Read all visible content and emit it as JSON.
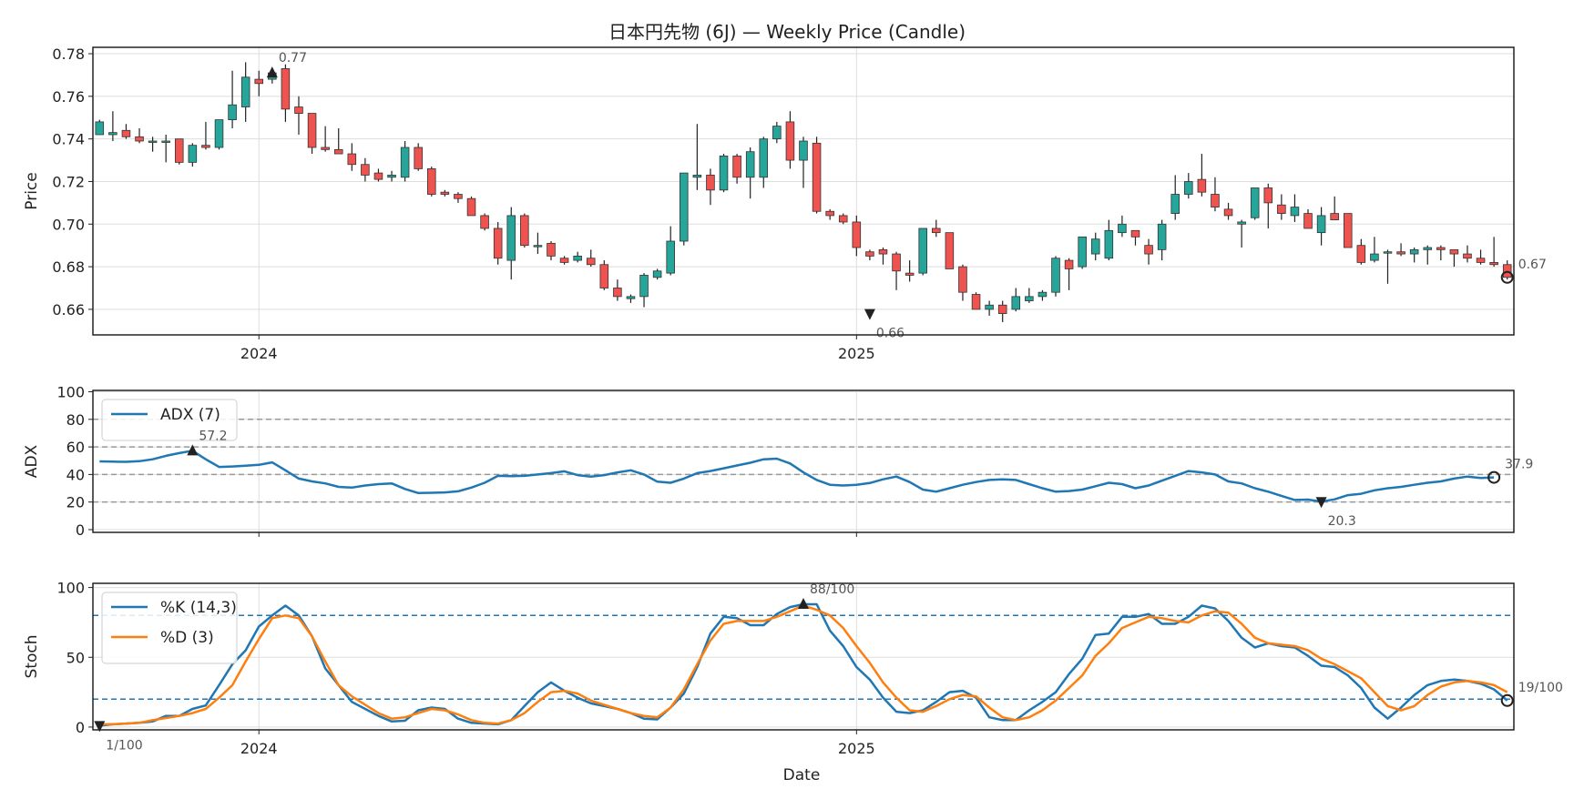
{
  "title": "日本円先物 (6J) — Weekly Price (Candle)",
  "xlabel": "Date",
  "colors": {
    "up": "#26a69a",
    "down": "#ef5350",
    "adx": "#1f77b4",
    "k": "#1f77b4",
    "d": "#ff7f0e",
    "grid": "#dddddd",
    "ref": "#999999"
  },
  "chart_data": [
    {
      "type": "candlestick",
      "ylabel": "Price",
      "ylim": [
        0.648,
        0.783
      ],
      "yticks": [
        0.66,
        0.68,
        0.7,
        0.72,
        0.74,
        0.76,
        0.78
      ],
      "xtick_labels": [
        {
          "label": "2024",
          "index": 12
        },
        {
          "label": "2025",
          "index": 57
        }
      ],
      "grid": true,
      "ohlc": [
        [
          0.742,
          0.749,
          0.742,
          0.748
        ],
        [
          0.742,
          0.753,
          0.739,
          0.743
        ],
        [
          0.744,
          0.747,
          0.74,
          0.741
        ],
        [
          0.741,
          0.745,
          0.738,
          0.739
        ],
        [
          0.739,
          0.741,
          0.734,
          0.739
        ],
        [
          0.739,
          0.742,
          0.729,
          0.739
        ],
        [
          0.74,
          0.74,
          0.728,
          0.729
        ],
        [
          0.729,
          0.738,
          0.727,
          0.737
        ],
        [
          0.737,
          0.748,
          0.735,
          0.736
        ],
        [
          0.736,
          0.749,
          0.735,
          0.749
        ],
        [
          0.749,
          0.772,
          0.745,
          0.756
        ],
        [
          0.755,
          0.776,
          0.748,
          0.769
        ],
        [
          0.768,
          0.772,
          0.76,
          0.766
        ],
        [
          0.768,
          0.772,
          0.766,
          0.771
        ],
        [
          0.773,
          0.775,
          0.748,
          0.754
        ],
        [
          0.755,
          0.76,
          0.742,
          0.752
        ],
        [
          0.752,
          0.752,
          0.733,
          0.736
        ],
        [
          0.736,
          0.746,
          0.734,
          0.735
        ],
        [
          0.735,
          0.745,
          0.733,
          0.733
        ],
        [
          0.733,
          0.738,
          0.725,
          0.728
        ],
        [
          0.728,
          0.731,
          0.72,
          0.723
        ],
        [
          0.724,
          0.726,
          0.72,
          0.721
        ],
        [
          0.722,
          0.725,
          0.72,
          0.723
        ],
        [
          0.722,
          0.739,
          0.72,
          0.736
        ],
        [
          0.736,
          0.738,
          0.725,
          0.726
        ],
        [
          0.726,
          0.727,
          0.713,
          0.714
        ],
        [
          0.715,
          0.716,
          0.713,
          0.714
        ],
        [
          0.714,
          0.715,
          0.71,
          0.712
        ],
        [
          0.712,
          0.713,
          0.704,
          0.704
        ],
        [
          0.704,
          0.705,
          0.697,
          0.698
        ],
        [
          0.698,
          0.701,
          0.681,
          0.684
        ],
        [
          0.683,
          0.708,
          0.674,
          0.704
        ],
        [
          0.704,
          0.705,
          0.689,
          0.69
        ],
        [
          0.69,
          0.696,
          0.686,
          0.69
        ],
        [
          0.691,
          0.692,
          0.683,
          0.685
        ],
        [
          0.684,
          0.685,
          0.681,
          0.682
        ],
        [
          0.683,
          0.687,
          0.682,
          0.685
        ],
        [
          0.684,
          0.688,
          0.68,
          0.681
        ],
        [
          0.681,
          0.683,
          0.669,
          0.67
        ],
        [
          0.67,
          0.674,
          0.664,
          0.666
        ],
        [
          0.665,
          0.667,
          0.663,
          0.666
        ],
        [
          0.666,
          0.677,
          0.661,
          0.676
        ],
        [
          0.675,
          0.679,
          0.674,
          0.678
        ],
        [
          0.677,
          0.699,
          0.676,
          0.692
        ],
        [
          0.692,
          0.724,
          0.69,
          0.724
        ],
        [
          0.722,
          0.747,
          0.716,
          0.723
        ],
        [
          0.723,
          0.726,
          0.709,
          0.716
        ],
        [
          0.716,
          0.733,
          0.715,
          0.732
        ],
        [
          0.732,
          0.733,
          0.719,
          0.722
        ],
        [
          0.722,
          0.736,
          0.712,
          0.734
        ],
        [
          0.722,
          0.741,
          0.717,
          0.74
        ],
        [
          0.74,
          0.748,
          0.738,
          0.746
        ],
        [
          0.748,
          0.753,
          0.726,
          0.73
        ],
        [
          0.73,
          0.741,
          0.717,
          0.739
        ],
        [
          0.738,
          0.741,
          0.705,
          0.706
        ],
        [
          0.706,
          0.707,
          0.702,
          0.704
        ],
        [
          0.704,
          0.705,
          0.7,
          0.701
        ],
        [
          0.701,
          0.704,
          0.685,
          0.689
        ],
        [
          0.687,
          0.688,
          0.683,
          0.685
        ],
        [
          0.688,
          0.689,
          0.681,
          0.686
        ],
        [
          0.686,
          0.687,
          0.669,
          0.678
        ],
        [
          0.677,
          0.683,
          0.673,
          0.676
        ],
        [
          0.677,
          0.698,
          0.676,
          0.698
        ],
        [
          0.698,
          0.702,
          0.694,
          0.696
        ],
        [
          0.696,
          0.696,
          0.679,
          0.679
        ],
        [
          0.68,
          0.681,
          0.664,
          0.668
        ],
        [
          0.667,
          0.668,
          0.66,
          0.66
        ],
        [
          0.66,
          0.664,
          0.657,
          0.662
        ],
        [
          0.662,
          0.664,
          0.654,
          0.658
        ],
        [
          0.66,
          0.67,
          0.659,
          0.666
        ],
        [
          0.664,
          0.67,
          0.663,
          0.666
        ],
        [
          0.666,
          0.669,
          0.664,
          0.668
        ],
        [
          0.668,
          0.685,
          0.666,
          0.684
        ],
        [
          0.683,
          0.684,
          0.669,
          0.679
        ],
        [
          0.68,
          0.694,
          0.679,
          0.694
        ],
        [
          0.686,
          0.696,
          0.683,
          0.693
        ],
        [
          0.684,
          0.702,
          0.683,
          0.697
        ],
        [
          0.696,
          0.704,
          0.694,
          0.7
        ],
        [
          0.697,
          0.697,
          0.69,
          0.694
        ],
        [
          0.69,
          0.693,
          0.681,
          0.686
        ],
        [
          0.688,
          0.702,
          0.683,
          0.7
        ],
        [
          0.705,
          0.723,
          0.702,
          0.714
        ],
        [
          0.714,
          0.724,
          0.712,
          0.72
        ],
        [
          0.721,
          0.733,
          0.713,
          0.715
        ],
        [
          0.714,
          0.722,
          0.706,
          0.708
        ],
        [
          0.707,
          0.71,
          0.702,
          0.704
        ],
        [
          0.7,
          0.702,
          0.689,
          0.701
        ],
        [
          0.703,
          0.717,
          0.702,
          0.717
        ],
        [
          0.717,
          0.719,
          0.698,
          0.71
        ],
        [
          0.709,
          0.714,
          0.702,
          0.705
        ],
        [
          0.704,
          0.714,
          0.701,
          0.708
        ],
        [
          0.705,
          0.707,
          0.699,
          0.698
        ],
        [
          0.696,
          0.708,
          0.69,
          0.704
        ],
        [
          0.705,
          0.713,
          0.702,
          0.702
        ],
        [
          0.705,
          0.705,
          0.689,
          0.689
        ],
        [
          0.69,
          0.693,
          0.681,
          0.682
        ],
        [
          0.683,
          0.694,
          0.682,
          0.686
        ],
        [
          0.687,
          0.688,
          0.672,
          0.687
        ],
        [
          0.687,
          0.691,
          0.685,
          0.686
        ],
        [
          0.686,
          0.689,
          0.682,
          0.688
        ],
        [
          0.688,
          0.69,
          0.681,
          0.689
        ],
        [
          0.689,
          0.69,
          0.683,
          0.688
        ],
        [
          0.688,
          0.688,
          0.68,
          0.686
        ],
        [
          0.686,
          0.69,
          0.682,
          0.684
        ],
        [
          0.684,
          0.688,
          0.681,
          0.682
        ],
        [
          0.682,
          0.694,
          0.68,
          0.681
        ],
        [
          0.681,
          0.683,
          0.674,
          0.675
        ]
      ],
      "annotations": [
        {
          "text": "0.77",
          "index": 13,
          "value": 0.771,
          "marker": "up"
        },
        {
          "text": "0.66",
          "index": 58,
          "value": 0.658,
          "marker": "down"
        },
        {
          "text": "0.67",
          "index": 106,
          "value": 0.675,
          "marker": "circle"
        }
      ]
    },
    {
      "type": "line",
      "ylabel": "ADX",
      "ylim": [
        -2,
        101
      ],
      "yticks": [
        0,
        20,
        40,
        60,
        80,
        100
      ],
      "ref_lines": [
        20,
        40,
        60,
        80
      ],
      "legend_placement": "top-left",
      "series": [
        {
          "name": "ADX (7)",
          "values": [
            49.5,
            49.3,
            49.2,
            49.6,
            51.0,
            53.5,
            55.5,
            57.2,
            51.0,
            45.5,
            45.8,
            46.3,
            47.0,
            48.8,
            43.0,
            37.0,
            35.0,
            33.5,
            31.0,
            30.5,
            32.0,
            33.0,
            33.5,
            29.5,
            26.5,
            26.7,
            27.0,
            27.8,
            30.5,
            34.0,
            39.0,
            38.8,
            39.0,
            40.0,
            41.0,
            42.3,
            39.5,
            38.5,
            39.5,
            41.5,
            43.0,
            40.0,
            34.8,
            34.0,
            37.0,
            41.0,
            42.5,
            44.5,
            46.5,
            48.5,
            51.0,
            51.5,
            48.0,
            41.5,
            36.0,
            32.5,
            32.0,
            32.5,
            33.8,
            36.5,
            38.5,
            34.5,
            29.0,
            27.5,
            30.0,
            32.5,
            34.5,
            36.0,
            36.5,
            36.0,
            33.0,
            30.0,
            27.5,
            28.0,
            29.0,
            31.5,
            34.0,
            33.0,
            30.0,
            32.0,
            35.5,
            39.0,
            42.5,
            41.5,
            40.0,
            35.0,
            33.5,
            30.0,
            27.5,
            24.5,
            21.5,
            21.8,
            20.3,
            22.0,
            25.0,
            26.0,
            28.5,
            30.0,
            31.0,
            32.5,
            34.0,
            35.0,
            37.0,
            38.5,
            37.5,
            37.9
          ]
        }
      ],
      "annotations": [
        {
          "text": "57.2",
          "index": 7,
          "value": 57.2,
          "marker": "up"
        },
        {
          "text": "20.3",
          "index": 92,
          "value": 20.3,
          "marker": "down"
        },
        {
          "text": "37.9",
          "index": 105,
          "value": 37.9,
          "marker": "circle"
        }
      ]
    },
    {
      "type": "line",
      "ylabel": "Stoch",
      "ylim": [
        -2,
        103
      ],
      "yticks": [
        0,
        50,
        100
      ],
      "ref_lines": [
        20,
        80
      ],
      "legend_placement": "top-left",
      "series": [
        {
          "name": "%K (14,3)",
          "values": [
            1.0,
            2.0,
            2.5,
            3.0,
            4.0,
            8.0,
            8.0,
            13.0,
            15.5,
            30.0,
            45.0,
            55.0,
            72.0,
            80.0,
            87.0,
            80.0,
            65.0,
            42.0,
            30.0,
            18.0,
            13.0,
            8.0,
            4.0,
            4.5,
            12.0,
            14.0,
            13.0,
            6.0,
            3.0,
            2.5,
            2.0,
            5.0,
            15.0,
            25.0,
            32.0,
            26.0,
            21.0,
            17.0,
            15.0,
            13.0,
            10.0,
            6.0,
            5.5,
            14.0,
            24.0,
            43.0,
            67.0,
            79.0,
            78.0,
            73.0,
            73.0,
            81.0,
            86.0,
            88.0,
            88.0,
            69.0,
            58.0,
            43.0,
            34.0,
            21.0,
            11.0,
            10.0,
            12.0,
            18.0,
            25.0,
            26.0,
            21.0,
            7.0,
            5.0,
            5.0,
            12.0,
            18.0,
            25.0,
            38.0,
            49.0,
            66.0,
            67.0,
            79.0,
            79.0,
            81.0,
            74.0,
            74.0,
            79.0,
            87.0,
            85.0,
            76.0,
            64.0,
            57.0,
            60.0,
            58.0,
            57.0,
            51.0,
            44.0,
            43.0,
            37.0,
            28.0,
            14.0,
            6.0,
            14.0,
            23.0,
            30.0,
            33.0,
            34.0,
            33.0,
            31.0,
            27.0,
            19.0
          ]
        },
        {
          "name": "%D (3)",
          "values": [
            2.0,
            2.0,
            2.5,
            3.0,
            5.0,
            6.5,
            8.0,
            10.0,
            13.0,
            21.0,
            30.0,
            47.0,
            63.0,
            78.0,
            80.0,
            78.0,
            65.0,
            47.0,
            30.0,
            22.0,
            16.0,
            10.0,
            6.0,
            7.0,
            10.0,
            13.0,
            12.0,
            9.0,
            5.0,
            3.0,
            2.5,
            5.0,
            10.0,
            18.0,
            25.0,
            26.0,
            24.0,
            19.0,
            16.0,
            13.0,
            10.0,
            8.0,
            7.0,
            14.0,
            27.0,
            45.0,
            62.0,
            74.0,
            76.0,
            76.0,
            76.0,
            79.0,
            83.0,
            87.0,
            84.0,
            80.0,
            71.0,
            58.0,
            46.0,
            32.0,
            21.0,
            12.0,
            11.0,
            15.0,
            20.0,
            23.0,
            22.0,
            14.0,
            7.0,
            5.0,
            7.0,
            12.0,
            19.0,
            28.0,
            37.0,
            51.0,
            60.0,
            71.0,
            75.0,
            79.0,
            78.0,
            76.0,
            75.0,
            80.0,
            83.0,
            82.0,
            74.0,
            64.0,
            60.0,
            59.0,
            58.0,
            55.0,
            49.0,
            45.0,
            40.0,
            35.0,
            25.0,
            15.0,
            12.0,
            15.0,
            23.0,
            29.0,
            32.0,
            33.0,
            32.0,
            30.0,
            25.0
          ]
        }
      ],
      "annotations": [
        {
          "text": "1/100",
          "index": 0,
          "value": 1,
          "marker": "down"
        },
        {
          "text": "88/100",
          "index": 53,
          "value": 88,
          "marker": "up"
        },
        {
          "text": "19/100",
          "index": 106,
          "value": 19,
          "marker": "circle"
        }
      ]
    }
  ]
}
